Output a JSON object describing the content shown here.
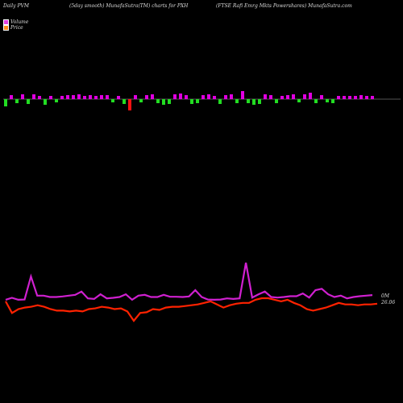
{
  "header": {
    "left": "Daily PVM",
    "middle": "(5day smooth) MunafaSutra(TM) charts for PXH",
    "right": "(FTSE Rafi  Emrg Mkts Powershares) MunafaSutra.com"
  },
  "legend": {
    "volume_label": "Volume",
    "price_label": "Price",
    "volume_color": "#e040e0",
    "price_color": "#ff8a1a"
  },
  "colors": {
    "background": "#000000",
    "up_bar": "#e000e0",
    "down_bar": "#22dd22",
    "spike_down_bar": "#ff1111",
    "volume_line": "#d020d0",
    "price_line": "#ff2200",
    "baseline": "#aaaaaa"
  },
  "chart_data": {
    "type": "line",
    "series_labels": {
      "volume_end": "0M",
      "price_end": "26.06"
    },
    "bars": [
      -9,
      5,
      -5,
      6,
      -6,
      6,
      4,
      -7,
      4,
      -4,
      4,
      5,
      5,
      6,
      4,
      5,
      4,
      5,
      5,
      -4,
      4,
      -6,
      -14,
      5,
      -4,
      5,
      6,
      -5,
      -7,
      -6,
      6,
      7,
      5,
      -6,
      -5,
      5,
      6,
      4,
      -6,
      5,
      6,
      -5,
      10,
      -5,
      -7,
      -6,
      6,
      5,
      -5,
      4,
      5,
      6,
      -4,
      6,
      8,
      -5,
      5,
      -4,
      -5,
      4,
      4,
      4,
      4,
      5,
      4,
      4
    ],
    "volume_line": [
      0.15,
      0.22,
      0.15,
      0.16,
      1.0,
      0.3,
      0.3,
      0.25,
      0.25,
      0.27,
      0.3,
      0.33,
      0.45,
      0.2,
      0.18,
      0.35,
      0.2,
      0.22,
      0.25,
      0.35,
      0.15,
      0.3,
      0.33,
      0.25,
      0.25,
      0.33,
      0.26,
      0.26,
      0.25,
      0.27,
      0.5,
      0.25,
      0.16,
      0.15,
      0.16,
      0.2,
      0.18,
      0.2,
      1.5,
      0.23,
      0.35,
      0.45,
      0.25,
      0.23,
      0.25,
      0.28,
      0.28,
      0.38,
      0.23,
      0.5,
      0.55,
      0.35,
      0.25,
      0.3,
      0.2,
      0.25,
      0.28,
      0.3,
      0.32
    ],
    "price_line": [
      26.1,
      25.95,
      26.0,
      26.02,
      26.03,
      26.05,
      26.03,
      26.0,
      25.98,
      25.98,
      25.97,
      25.98,
      25.97,
      26.0,
      26.01,
      26.03,
      26.02,
      26.0,
      26.01,
      25.97,
      25.85,
      25.95,
      25.96,
      26.0,
      25.99,
      26.02,
      26.03,
      26.03,
      26.04,
      26.05,
      26.06,
      26.08,
      26.1,
      26.06,
      26.02,
      26.05,
      26.07,
      26.08,
      26.08,
      26.12,
      26.14,
      26.14,
      26.12,
      26.1,
      26.12,
      26.08,
      26.05,
      26.0,
      25.98,
      26.0,
      26.02,
      26.05,
      26.08,
      26.06,
      26.06,
      26.05,
      26.06,
      26.06,
      26.07
    ]
  }
}
